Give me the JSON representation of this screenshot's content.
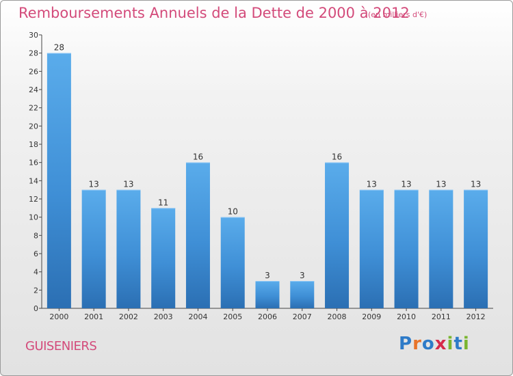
{
  "title": "Remboursements Annuels de la Dette de 2000 à 2012",
  "subtitle": "(en milliers d'€)",
  "commune": "GUISENIERS",
  "logo": {
    "text": "Proxiti",
    "letters": [
      "P",
      "r",
      "o",
      "x",
      "i",
      "t",
      "i"
    ],
    "colors": [
      "#2e7bc8",
      "#e8742a",
      "#2e7bc8",
      "#d62a4a",
      "#7ab530",
      "#2e7bc8",
      "#7ab530"
    ]
  },
  "colors": {
    "bar": "#4e9fe0",
    "bar_dark": "#2c72b8",
    "text": "#d34a7a"
  },
  "chart_data": {
    "type": "bar",
    "categories": [
      "2000",
      "2001",
      "2002",
      "2003",
      "2004",
      "2005",
      "2006",
      "2007",
      "2008",
      "2009",
      "2010",
      "2011",
      "2012"
    ],
    "values": [
      28,
      13,
      13,
      11,
      16,
      10,
      3,
      3,
      16,
      13,
      13,
      13,
      13
    ],
    "data_labels": [
      "28",
      "13",
      "13",
      "11",
      "16",
      "10",
      "3",
      "3",
      "16",
      "13",
      "13",
      "13",
      "13"
    ],
    "title": "Remboursements Annuels de la Dette de 2000 à 2012",
    "ylim": [
      0,
      30
    ],
    "yticks": [
      "0",
      "2",
      "4",
      "6",
      "8",
      "10",
      "12",
      "14",
      "16",
      "18",
      "20",
      "22",
      "24",
      "26",
      "28",
      "30"
    ],
    "grid": false,
    "legend": "none"
  }
}
